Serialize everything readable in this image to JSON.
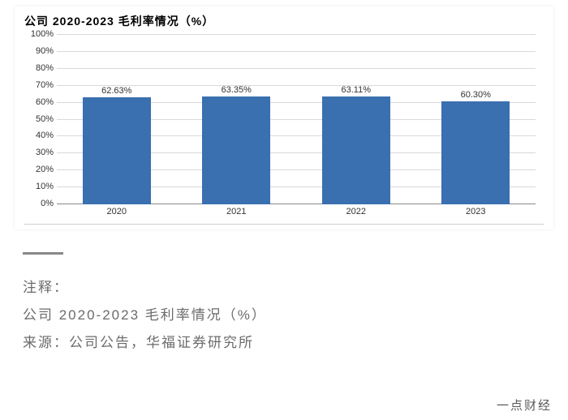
{
  "chart": {
    "type": "bar",
    "title": "公司 2020-2023 毛利率情况（%）",
    "title_fontsize": 14,
    "categories": [
      "2020",
      "2021",
      "2022",
      "2023"
    ],
    "values": [
      62.63,
      63.35,
      63.11,
      60.3
    ],
    "value_labels": [
      "62.63%",
      "63.35%",
      "63.11%",
      "60.30%"
    ],
    "bar_color": "#3a6fb0",
    "grid_color": "#d9d9d9",
    "axis_color": "#888888",
    "text_color": "#333333",
    "background_color": "#ffffff",
    "ylim": [
      0,
      100
    ],
    "ytick_step": 10,
    "yticks": [
      "0%",
      "10%",
      "20%",
      "30%",
      "40%",
      "50%",
      "60%",
      "70%",
      "80%",
      "90%",
      "100%"
    ],
    "bar_width": 0.65,
    "label_fontsize": 11
  },
  "annotation": {
    "heading": "注释：",
    "line1": "公司 2020-2023 毛利率情况（%）",
    "line2": "来源：公司公告，华福证券研究所",
    "text_color": "#6b6b6b",
    "dash_color": "#888888"
  },
  "credit": "一点财经"
}
